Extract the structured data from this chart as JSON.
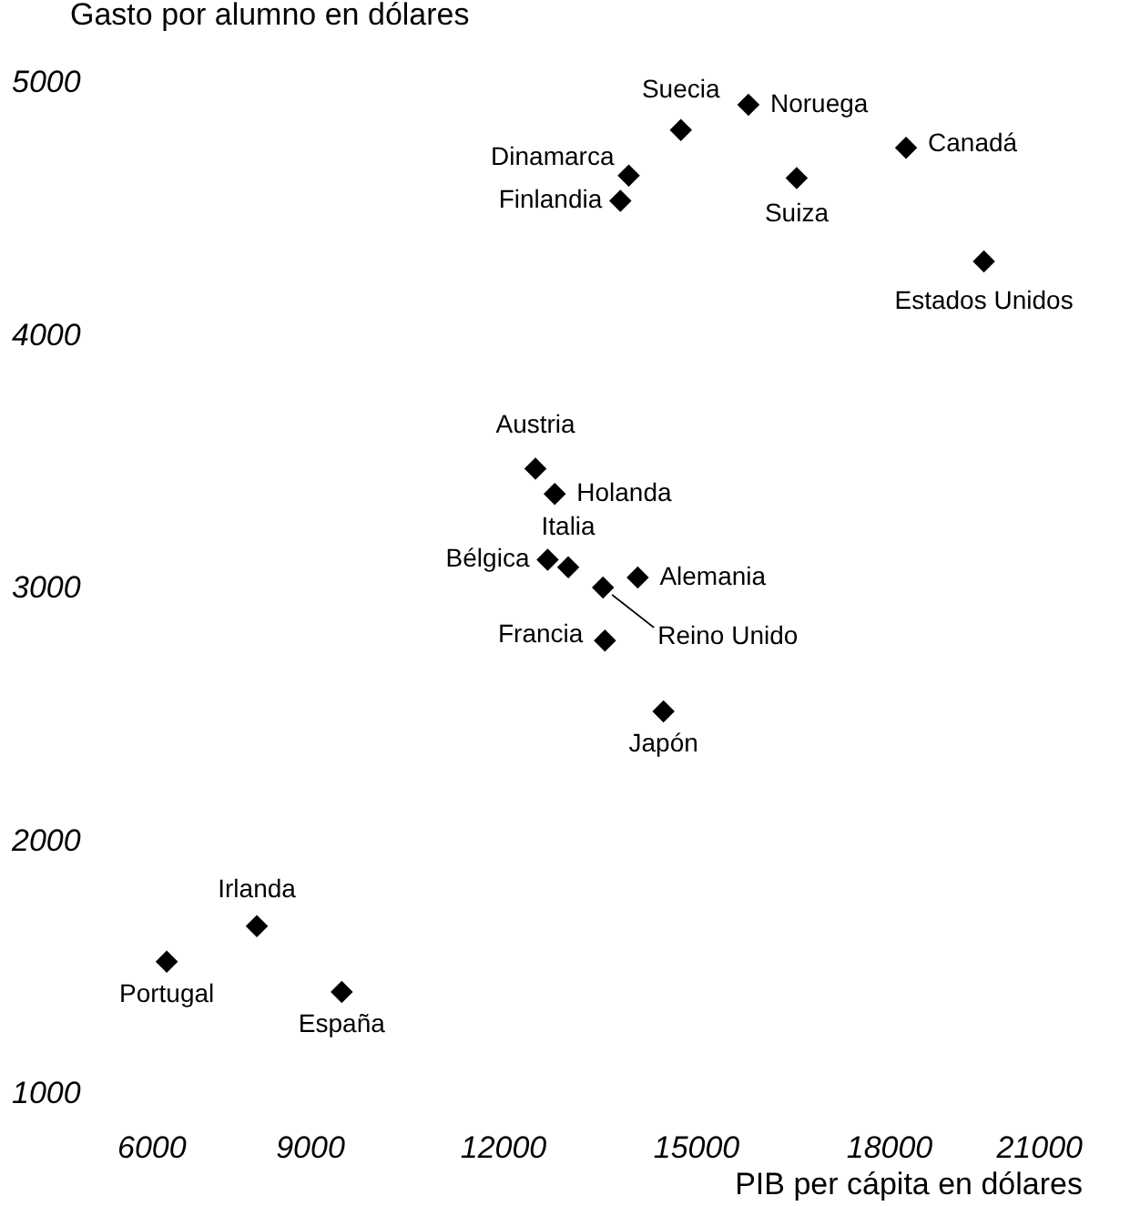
{
  "chart_data": {
    "type": "scatter",
    "xlabel": "PIB per cápita en dólares",
    "ylabel": "Gasto por alumno en dólares",
    "x": [
      6780,
      8180,
      9500,
      12510,
      12810,
      12700,
      13020,
      13560,
      14100,
      13590,
      14500,
      14770,
      15820,
      13960,
      13830,
      16570,
      18270,
      19480
    ],
    "series": [
      {
        "color": "#000000",
        "values": [
          1520,
          1660,
          1400,
          3470,
          3370,
          3110,
          3080,
          3000,
          3040,
          2790,
          2510,
          4810,
          4910,
          4630,
          4530,
          4620,
          4740,
          4290
        ]
      }
    ],
    "annotations": [
      {
        "text": "Portugal",
        "x": 6780,
        "y": 1520
      },
      {
        "text": "Irlanda",
        "x": 8180,
        "y": 1660
      },
      {
        "text": "España",
        "x": 9500,
        "y": 1400
      },
      {
        "text": "Austria",
        "x": 12510,
        "y": 3470
      },
      {
        "text": "Holanda",
        "x": 12810,
        "y": 3370
      },
      {
        "text": "Bélgica",
        "x": 12700,
        "y": 3110
      },
      {
        "text": "Italia",
        "x": 13020,
        "y": 3080
      },
      {
        "text": "Reino Unido",
        "x": 13560,
        "y": 3000
      },
      {
        "text": "Alemania",
        "x": 14100,
        "y": 3040
      },
      {
        "text": "Francia",
        "x": 13590,
        "y": 2790
      },
      {
        "text": "Japón",
        "x": 14500,
        "y": 2510
      },
      {
        "text": "Suecia",
        "x": 14770,
        "y": 4810
      },
      {
        "text": "Noruega",
        "x": 15820,
        "y": 4910
      },
      {
        "text": "Dinamarca",
        "x": 13960,
        "y": 4630
      },
      {
        "text": "Finlandia",
        "x": 13830,
        "y": 4530
      },
      {
        "text": "Suiza",
        "x": 16570,
        "y": 4620
      },
      {
        "text": "Canadá",
        "x": 18270,
        "y": 4740
      },
      {
        "text": "Estados Unidos",
        "x": 19480,
        "y": 4290
      }
    ],
    "xlim": [
      6000,
      21000
    ],
    "xticks": [
      6000,
      9000,
      12000,
      15000,
      18000,
      21000
    ],
    "ylim": [
      1000,
      5000
    ],
    "yticks": [
      1000,
      2000,
      3000,
      4000,
      5000
    ],
    "marker": "diamond",
    "grid": false
  }
}
